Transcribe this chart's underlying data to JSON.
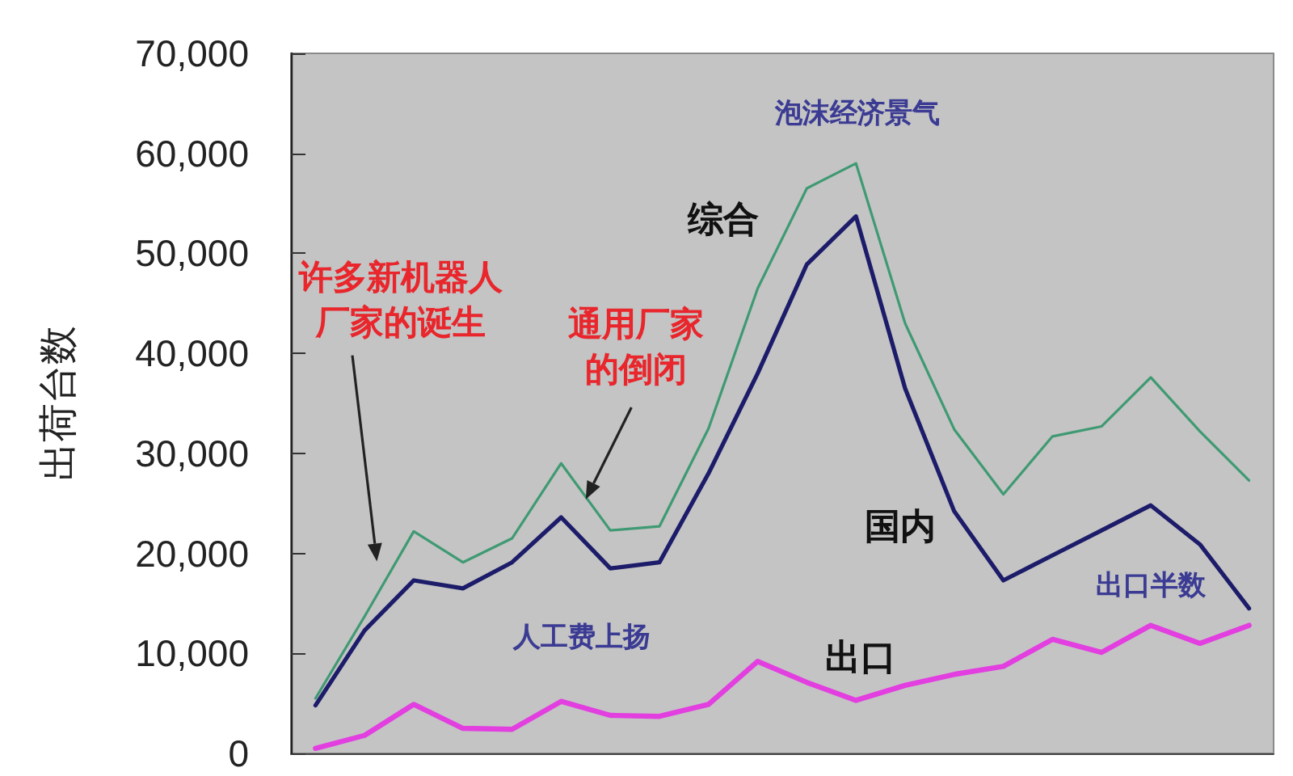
{
  "chart_data": {
    "type": "line",
    "ylabel": "出荷台数",
    "categories": [
      null,
      null,
      null,
      null,
      null,
      null,
      null,
      null,
      null,
      null,
      null,
      null,
      null,
      null,
      null,
      null,
      null,
      null,
      null,
      null
    ],
    "series": [
      {
        "name": "综合",
        "color": "#3f9a73",
        "values": [
          5500,
          13700,
          22200,
          19100,
          21500,
          29000,
          22300,
          22700,
          32500,
          46500,
          56500,
          59000,
          43000,
          32400,
          25900,
          31700,
          32700,
          37600,
          32200,
          27300
        ]
      },
      {
        "name": "国内",
        "color": "#1c1c6a",
        "values": [
          4800,
          12300,
          17300,
          16500,
          19100,
          23600,
          18500,
          19100,
          28000,
          38000,
          48900,
          53700,
          36500,
          24200,
          17300,
          19800,
          22300,
          24800,
          20900,
          14500
        ]
      },
      {
        "name": "出口",
        "color": "#e23ee0",
        "values": [
          500,
          1800,
          4900,
          2500,
          2400,
          5200,
          3800,
          3700,
          4900,
          9200,
          7100,
          5300,
          6800,
          7900,
          8700,
          11400,
          10100,
          12800,
          11000,
          12800
        ]
      }
    ],
    "ylim": [
      0,
      70000
    ],
    "yticks": [
      0,
      {
        "value": 10000,
        "label": "10,000"
      },
      {
        "value": 20000,
        "label": "20,000"
      },
      {
        "value": 30000,
        "label": "30,000"
      },
      {
        "value": 40000,
        "label": "40,000"
      },
      {
        "value": 50000,
        "label": "50,000"
      },
      {
        "value": 60000,
        "label": "60,000"
      },
      {
        "value": 70000,
        "label": "70,000"
      }
    ],
    "grid": false,
    "legend": false,
    "marker": "none",
    "annotations": [
      "许多新机器人厂家的诞生",
      "通用厂家的倒闭",
      "泡沫经济景气",
      "人工费上扬",
      "出口半数"
    ]
  }
}
